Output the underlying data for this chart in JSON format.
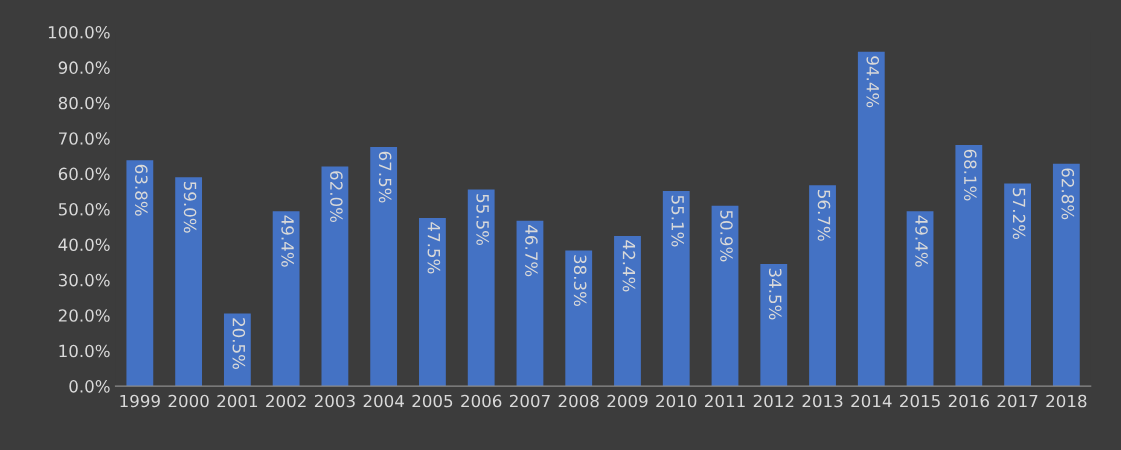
{
  "chart_data": {
    "type": "bar",
    "categories": [
      "1999",
      "2000",
      "2001",
      "2002",
      "2003",
      "2004",
      "2005",
      "2006",
      "2007",
      "2008",
      "2009",
      "2010",
      "2011",
      "2012",
      "2013",
      "2014",
      "2015",
      "2016",
      "2017",
      "2018"
    ],
    "values": [
      63.8,
      59.0,
      20.5,
      49.4,
      62.0,
      67.5,
      47.5,
      55.5,
      46.7,
      38.3,
      42.4,
      55.1,
      50.9,
      34.5,
      56.7,
      94.4,
      49.4,
      68.1,
      57.2,
      62.8
    ],
    "value_labels": [
      "63.8%",
      "59.0%",
      "20.5%",
      "49.4%",
      "62.0%",
      "67.5%",
      "47.5%",
      "55.5%",
      "46.7%",
      "38.3%",
      "42.4%",
      "55.1%",
      "50.9%",
      "34.5%",
      "56.7%",
      "94.4%",
      "49.4%",
      "68.1%",
      "57.2%",
      "62.8%"
    ],
    "color": "#4472c4",
    "ylim": [
      0,
      100
    ],
    "yticks": [
      {
        "value": 0,
        "label": "0.0%"
      },
      {
        "value": 10,
        "label": "10.0%"
      },
      {
        "value": 20,
        "label": "20.0%"
      },
      {
        "value": 30,
        "label": "30.0%"
      },
      {
        "value": 40,
        "label": "40.0%"
      },
      {
        "value": 50,
        "label": "50.0%"
      },
      {
        "value": 60,
        "label": "60.0%"
      },
      {
        "value": 70,
        "label": "70.0%"
      },
      {
        "value": 80,
        "label": "80.0%"
      },
      {
        "value": 90,
        "label": "90.0%"
      },
      {
        "value": 100,
        "label": "100.0%"
      }
    ],
    "grid": false,
    "legend": false
  }
}
